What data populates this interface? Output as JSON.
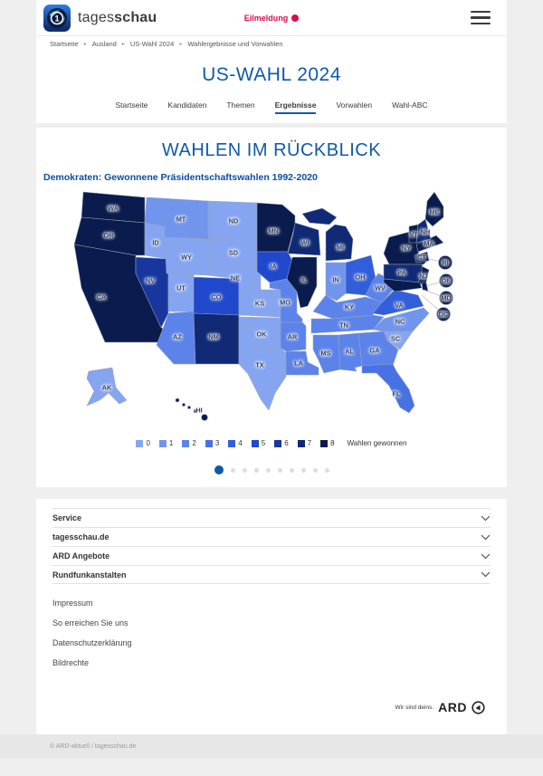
{
  "header": {
    "brand": {
      "regular": "tages",
      "bold": "schau"
    },
    "alert_label": "Eilmeldung"
  },
  "breadcrumb": {
    "separator": "▸",
    "items": [
      "Startseite",
      "Ausland",
      "US-Wahl 2024",
      "Wahlergebnisse und Vorwahlen"
    ]
  },
  "hero": {
    "title": "US-WAHL 2024",
    "tabs": [
      {
        "label": "Startseite",
        "active": false
      },
      {
        "label": "Kandidaten",
        "active": false
      },
      {
        "label": "Themen",
        "active": false
      },
      {
        "label": "Ergebnisse",
        "active": true
      },
      {
        "label": "Vorwahlen",
        "active": false
      },
      {
        "label": "Wahl-ABC",
        "active": false
      }
    ]
  },
  "rueckblick": {
    "title": "WAHLEN IM RÜCKBLICK",
    "pagination": {
      "dots": 10,
      "active_index": 0
    }
  },
  "chart_data": {
    "type": "heatmap",
    "subtype": "us-choropleth-map",
    "title": "Demokraten: Gewonnene Präsidentschaftswahlen 1992-2020",
    "unit_label": "Wahlen gewonnen",
    "legend_values": [
      0,
      1,
      2,
      3,
      4,
      5,
      6,
      7,
      8
    ],
    "palette": [
      "#86a5f1",
      "#7194ed",
      "#5c83e9",
      "#4772e4",
      "#325edb",
      "#2048cd",
      "#17379f",
      "#102a76",
      "#0a1c4d"
    ],
    "states": [
      {
        "id": "WA",
        "wins": 8
      },
      {
        "id": "OR",
        "wins": 8
      },
      {
        "id": "CA",
        "wins": 8
      },
      {
        "id": "NV",
        "wins": 6
      },
      {
        "id": "ID",
        "wins": 0
      },
      {
        "id": "UT",
        "wins": 0
      },
      {
        "id": "AZ",
        "wins": 2
      },
      {
        "id": "MT",
        "wins": 1
      },
      {
        "id": "WY",
        "wins": 0
      },
      {
        "id": "CO",
        "wins": 5
      },
      {
        "id": "NM",
        "wins": 7
      },
      {
        "id": "ND",
        "wins": 0
      },
      {
        "id": "SD",
        "wins": 0
      },
      {
        "id": "NE",
        "wins": 0
      },
      {
        "id": "KS",
        "wins": 0
      },
      {
        "id": "OK",
        "wins": 0
      },
      {
        "id": "TX",
        "wins": 0
      },
      {
        "id": "MN",
        "wins": 8
      },
      {
        "id": "IA",
        "wins": 5
      },
      {
        "id": "MO",
        "wins": 2
      },
      {
        "id": "AR",
        "wins": 2
      },
      {
        "id": "LA",
        "wins": 2
      },
      {
        "id": "WI",
        "wins": 7
      },
      {
        "id": "IL",
        "wins": 8
      },
      {
        "id": "MI",
        "wins": 7
      },
      {
        "id": "IN",
        "wins": 1
      },
      {
        "id": "OH",
        "wins": 4
      },
      {
        "id": "KY",
        "wins": 2
      },
      {
        "id": "TN",
        "wins": 2
      },
      {
        "id": "MS",
        "wins": 2
      },
      {
        "id": "AL",
        "wins": 2
      },
      {
        "id": "GA",
        "wins": 2
      },
      {
        "id": "FL",
        "wins": 3
      },
      {
        "id": "SC",
        "wins": 0
      },
      {
        "id": "NC",
        "wins": 1
      },
      {
        "id": "VA",
        "wins": 4
      },
      {
        "id": "WV",
        "wins": 2
      },
      {
        "id": "PA",
        "wins": 7
      },
      {
        "id": "NY",
        "wins": 8
      },
      {
        "id": "NJ",
        "wins": 8
      },
      {
        "id": "CT",
        "wins": 8
      },
      {
        "id": "MA",
        "wins": 8
      },
      {
        "id": "VT",
        "wins": 8
      },
      {
        "id": "NH",
        "wins": 7
      },
      {
        "id": "ME",
        "wins": 8
      },
      {
        "id": "RI",
        "wins": 8
      },
      {
        "id": "DE",
        "wins": 8
      },
      {
        "id": "MD",
        "wins": 8
      },
      {
        "id": "DC",
        "wins": 8
      },
      {
        "id": "AK",
        "wins": 0
      },
      {
        "id": "HI",
        "wins": 8
      }
    ]
  },
  "footer": {
    "accordions": [
      "Service",
      "tagesschau.de",
      "ARD Angebote",
      "Rundfunkanstalten"
    ],
    "links": [
      "Impressum",
      "So erreichen Sie uns",
      "Datenschutzerklärung",
      "Bildrechte"
    ],
    "ard": {
      "tagline": "Wir sind deins.",
      "brand": "ARD"
    },
    "copyright": "© ARD-aktuell / tagesschau.de"
  },
  "colors": {
    "brand_blue": "#0f5aa8",
    "alert_red": "#dc0a4e",
    "active_dot": "#0b5aa5"
  }
}
